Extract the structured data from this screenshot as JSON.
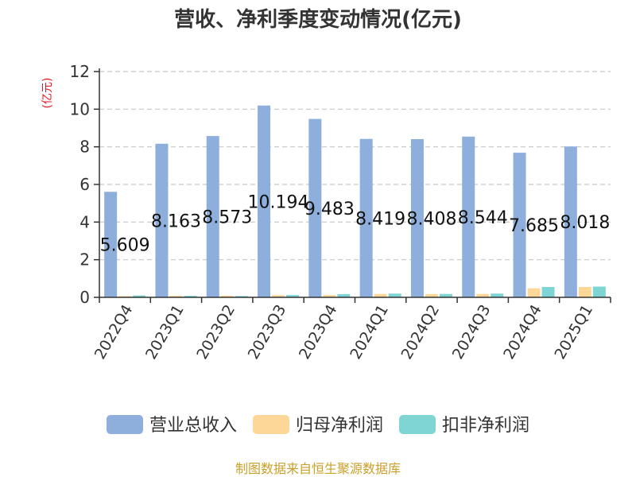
{
  "chart_data": {
    "type": "bar",
    "title": "营收、净利季度变动情况(亿元)",
    "ylabel": "(亿元)",
    "xlabel": "",
    "ylim": [
      0,
      12
    ],
    "yticks": [
      0,
      2,
      4,
      6,
      8,
      10,
      12
    ],
    "grid": true,
    "legend_position": "bottom",
    "categories": [
      "2022Q4",
      "2023Q1",
      "2023Q2",
      "2023Q3",
      "2023Q4",
      "2024Q1",
      "2024Q2",
      "2024Q3",
      "2024Q4",
      "2025Q1"
    ],
    "series": [
      {
        "name": "营业总收入",
        "color": "#8eaedc",
        "values": [
          5.609,
          8.163,
          8.573,
          10.194,
          9.483,
          8.419,
          8.408,
          8.544,
          7.685,
          8.018
        ],
        "labels": [
          "5.609",
          "8.163",
          "8.573",
          "10.194",
          "9.483",
          "8.419",
          "8.408",
          "8.544",
          "7.685",
          "8.018"
        ]
      },
      {
        "name": "归母净利润",
        "color": "#fdd797",
        "values": [
          0.02,
          0.08,
          0.09,
          0.11,
          0.12,
          0.18,
          0.17,
          0.18,
          0.48,
          0.55
        ]
      },
      {
        "name": "扣非净利润",
        "color": "#7fd4d4",
        "values": [
          0.1,
          0.08,
          0.07,
          0.12,
          0.17,
          0.2,
          0.18,
          0.2,
          0.55,
          0.57
        ]
      }
    ],
    "source": "制图数据来自恒生聚源数据库"
  }
}
